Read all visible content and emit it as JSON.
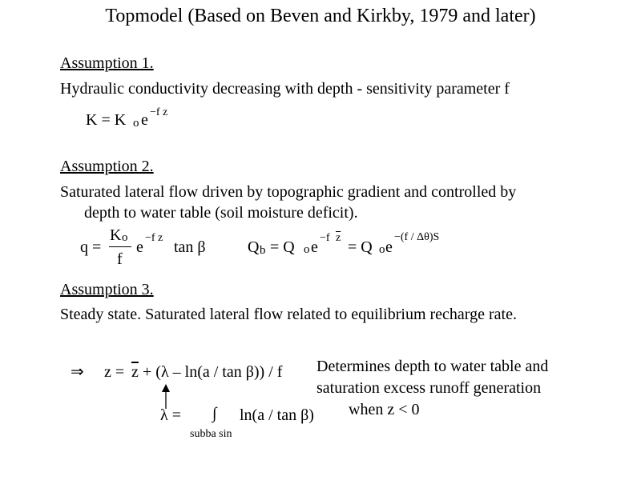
{
  "title": "Topmodel (Based on Beven and Kirkby, 1979 and later)",
  "assumption1": {
    "heading": "Assumption 1.",
    "text": "Hydraulic conductivity decreasing with depth - sensitivity parameter f",
    "eq": {
      "lhs": "K = K",
      "sub": "o",
      "e": "e",
      "exp": "−f z"
    }
  },
  "assumption2": {
    "heading": "Assumption 2.",
    "text1": "Saturated lateral flow driven by topographic gradient and controlled by",
    "text2": "depth to water table (soil moisture deficit).",
    "eq1": {
      "lhs": "q =",
      "num": "K",
      "num_sub": "o",
      "den": "f",
      "e": "e",
      "exp": "−f z",
      "rest": "tan β"
    },
    "eq2": {
      "q": "Q",
      "q_sub": "b",
      "eq": "= Q",
      "o_sub": "o",
      "e": "e",
      "exp1": "−f",
      "zbar": "z",
      "eq2": "= Q",
      "o_sub2": "o",
      "e2": "e",
      "exp2": "−(f / Δθ)S"
    }
  },
  "assumption3": {
    "heading": "Assumption 3.",
    "text": "Steady state.  Saturated lateral flow related to equilibrium recharge rate.",
    "eq1": {
      "implies": "⇒",
      "lhs": "z =",
      "zbar": "z",
      "rhs": "+ (λ – ln(a / tan β)) / f"
    },
    "eq2": {
      "lhs": "λ =",
      "integral": "∫",
      "rhs": "ln(a / tan β)",
      "limit": "subba sin"
    },
    "note1": "Determines depth to water table and",
    "note2": "saturation excess runoff generation",
    "note3": "when z < 0"
  }
}
